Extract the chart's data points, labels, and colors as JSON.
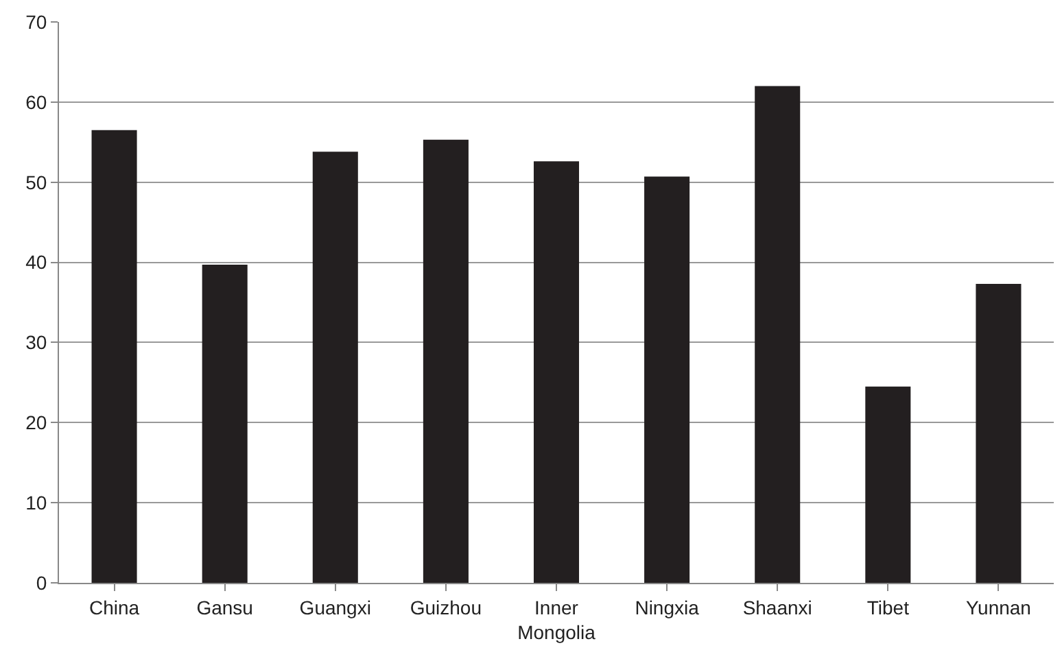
{
  "chart_data": {
    "type": "bar",
    "categories": [
      "China",
      "Gansu",
      "Guangxi",
      "Guizhou",
      "Inner Mongolia",
      "Ningxia",
      "Shaanxi",
      "Tibet",
      "Yunnan"
    ],
    "values": [
      56.5,
      39.7,
      53.8,
      55.3,
      52.6,
      50.7,
      62.0,
      24.5,
      37.3
    ],
    "color": "#231f20",
    "ylim": [
      0,
      70
    ],
    "yticks": [
      0,
      10,
      20,
      30,
      40,
      50,
      60,
      70
    ],
    "grid": "y"
  }
}
